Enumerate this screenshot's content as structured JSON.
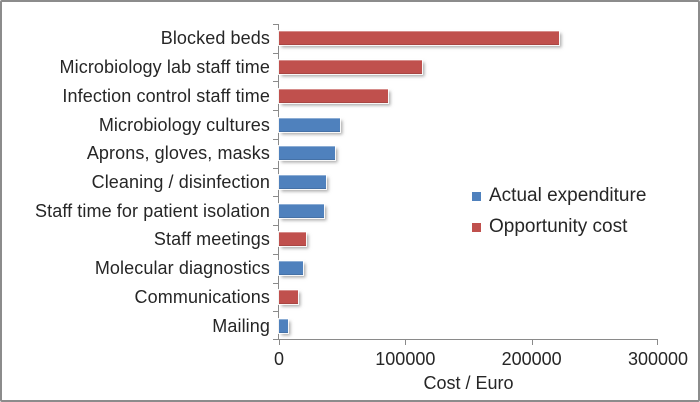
{
  "window": {
    "background": "#FFFFFF",
    "border_color": "#8C8C8C"
  },
  "chart_data": {
    "type": "bar",
    "orientation": "horizontal",
    "title": "",
    "xlabel": "Cost / Euro",
    "ylabel": "",
    "xlim": [
      0,
      300000
    ],
    "x_ticks": [
      0,
      100000,
      200000,
      300000
    ],
    "x_tick_labels": [
      "0",
      "100000",
      "200000",
      "300000"
    ],
    "grid": false,
    "legend_position": "center-right",
    "axis_color": "#8A8A8A",
    "text_color": "#262626",
    "legend": [
      {
        "label": "Actual expenditure",
        "color": "#4F81BD"
      },
      {
        "label": "Opportunity cost",
        "color": "#C0504D"
      }
    ],
    "bars": [
      {
        "category": "Blocked beds",
        "value": 222000,
        "series": "Opportunity cost"
      },
      {
        "category": "Microbiology lab staff time",
        "value": 113000,
        "series": "Opportunity cost"
      },
      {
        "category": "Infection control staff time",
        "value": 86000,
        "series": "Opportunity cost"
      },
      {
        "category": "Microbiology cultures",
        "value": 48000,
        "series": "Actual expenditure"
      },
      {
        "category": "Aprons, gloves, masks",
        "value": 44000,
        "series": "Actual expenditure"
      },
      {
        "category": "Cleaning / disinfection",
        "value": 37000,
        "series": "Actual expenditure"
      },
      {
        "category": "Staff time for patient isolation",
        "value": 36000,
        "series": "Actual expenditure"
      },
      {
        "category": "Staff meetings",
        "value": 21000,
        "series": "Opportunity cost"
      },
      {
        "category": "Molecular diagnostics",
        "value": 19000,
        "series": "Actual expenditure"
      },
      {
        "category": "Communications",
        "value": 15000,
        "series": "Opportunity cost"
      },
      {
        "category": "Mailing",
        "value": 7000,
        "series": "Actual expenditure"
      }
    ]
  }
}
